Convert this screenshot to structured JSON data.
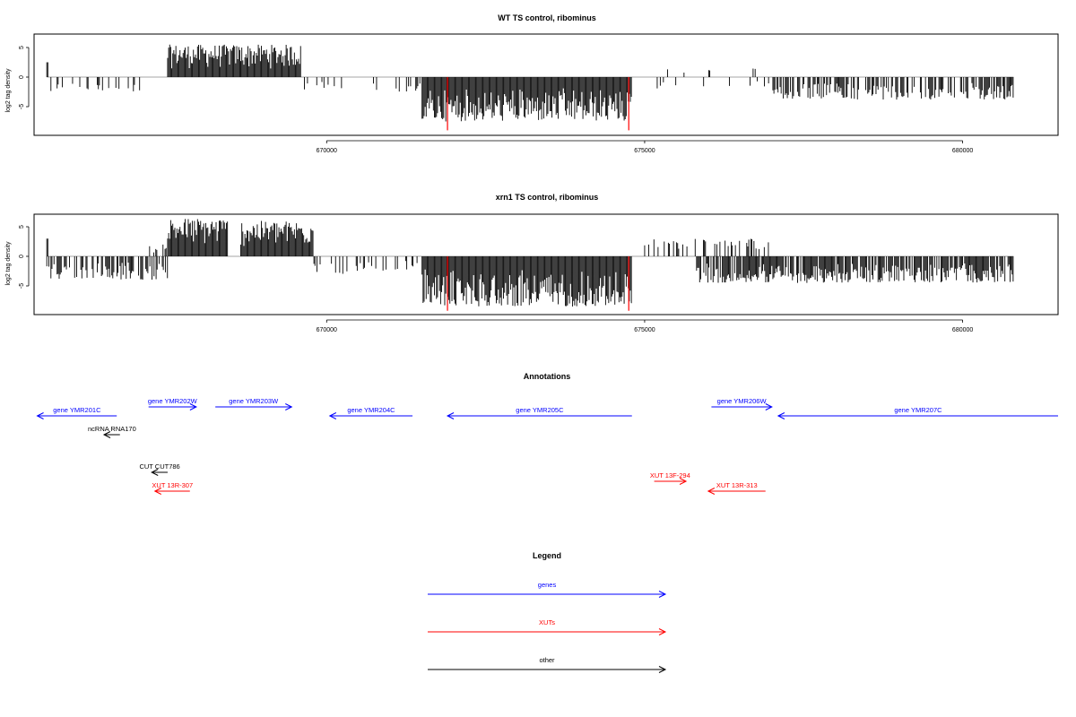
{
  "chart_data": [
    {
      "type": "bar",
      "title": "WT TS control, ribominus",
      "xlabel": "",
      "ylabel": "log2 tag density",
      "ylim": [
        -9.5,
        7
      ],
      "yticks": [
        -5,
        0,
        5
      ],
      "xlim": [
        665400,
        681500
      ],
      "xticks": [
        670000,
        675000,
        680000
      ],
      "x_tick_labels": [
        "670000",
        "675000",
        "680000"
      ],
      "grid": false,
      "highlight_color": "#ff0000",
      "segments": [
        {
          "strand": "plus",
          "start": 665600,
          "end": 665620,
          "max": 2.5,
          "density": 1
        },
        {
          "strand": "minus",
          "start": 665600,
          "end": 667100,
          "max": -2.5,
          "density": 0.25
        },
        {
          "strand": "plus",
          "start": 667500,
          "end": 668650,
          "max": 5.5,
          "density": 1
        },
        {
          "strand": "plus",
          "start": 668650,
          "end": 669600,
          "max": 5.5,
          "density": 1
        },
        {
          "strand": "minus",
          "start": 669650,
          "end": 671500,
          "max": -2.5,
          "density": 0.12
        },
        {
          "strand": "minus",
          "start": 671500,
          "end": 674800,
          "max": -7.5,
          "density": 1
        },
        {
          "strand": "plus",
          "start": 675100,
          "end": 677000,
          "max": 1.5,
          "density": 0.05
        },
        {
          "strand": "minus",
          "start": 675100,
          "end": 677000,
          "max": -2.0,
          "density": 0.08
        },
        {
          "strand": "minus",
          "start": 677000,
          "end": 680800,
          "max": -3.8,
          "density": 0.6
        }
      ],
      "highlights": [
        {
          "x": 671900,
          "value": -9.0
        },
        {
          "x": 674750,
          "value": -9.0
        }
      ]
    },
    {
      "type": "bar",
      "title": "xrn1 TS control, ribominus",
      "xlabel": "",
      "ylabel": "log2 tag density",
      "ylim": [
        -9.5,
        7
      ],
      "yticks": [
        -5,
        0,
        5
      ],
      "xlim": [
        665400,
        681500
      ],
      "xticks": [
        670000,
        675000,
        680000
      ],
      "x_tick_labels": [
        "670000",
        "675000",
        "680000"
      ],
      "grid": false,
      "highlight_color": "#ff0000",
      "segments": [
        {
          "strand": "plus",
          "start": 665600,
          "end": 665620,
          "max": 3.0,
          "density": 1
        },
        {
          "strand": "minus",
          "start": 665600,
          "end": 667500,
          "max": -4.0,
          "density": 0.6
        },
        {
          "strand": "plus",
          "start": 667200,
          "end": 667500,
          "max": 2.0,
          "density": 0.5
        },
        {
          "strand": "plus",
          "start": 667500,
          "end": 668450,
          "max": 6.5,
          "density": 1
        },
        {
          "strand": "plus",
          "start": 668650,
          "end": 669800,
          "max": 6.0,
          "density": 1
        },
        {
          "strand": "minus",
          "start": 669800,
          "end": 671500,
          "max": -3.0,
          "density": 0.3
        },
        {
          "strand": "minus",
          "start": 671500,
          "end": 674800,
          "max": -8.5,
          "density": 1
        },
        {
          "strand": "plus",
          "start": 675000,
          "end": 677000,
          "max": 3.0,
          "density": 0.3
        },
        {
          "strand": "minus",
          "start": 675800,
          "end": 680800,
          "max": -4.5,
          "density": 0.8
        }
      ],
      "highlights": [
        {
          "x": 671900,
          "value": -9.2
        },
        {
          "x": 674750,
          "value": -9.2
        }
      ]
    }
  ],
  "annotations": {
    "title": "Annotations",
    "features": [
      {
        "label": "gene YMR201C",
        "kind": "genes",
        "direction": "left",
        "start": 665450,
        "end": 666700,
        "row": 1
      },
      {
        "label": "gene YMR202W",
        "kind": "genes",
        "direction": "right",
        "start": 667200,
        "end": 667950,
        "row": 0
      },
      {
        "label": "gene YMR203W",
        "kind": "genes",
        "direction": "right",
        "start": 668250,
        "end": 669450,
        "row": 0
      },
      {
        "label": "gene YMR204C",
        "kind": "genes",
        "direction": "left",
        "start": 670050,
        "end": 671350,
        "row": 1
      },
      {
        "label": "gene YMR205C",
        "kind": "genes",
        "direction": "left",
        "start": 671900,
        "end": 674800,
        "row": 1
      },
      {
        "label": "gene YMR206W",
        "kind": "genes",
        "direction": "right",
        "start": 676050,
        "end": 677000,
        "row": 0
      },
      {
        "label": "gene YMR207C",
        "kind": "genes",
        "direction": "left",
        "start": 677100,
        "end": 681500,
        "row": 1
      },
      {
        "label": "ncRNA RNA170",
        "kind": "other",
        "direction": "left",
        "start": 666500,
        "end": 666750,
        "row": 2
      },
      {
        "label": "CUT CUT786",
        "kind": "other",
        "direction": "left",
        "start": 667250,
        "end": 667500,
        "row": 3
      },
      {
        "label": "XUT 13R-307",
        "kind": "XUTs",
        "direction": "left",
        "start": 667300,
        "end": 667850,
        "row": 4
      },
      {
        "label": "XUT 13F-294",
        "kind": "XUTs",
        "direction": "right",
        "start": 675150,
        "end": 675650,
        "row": 3.5
      },
      {
        "label": "XUT 13R-313",
        "kind": "XUTs",
        "direction": "left",
        "start": 676000,
        "end": 676900,
        "row": 4
      }
    ]
  },
  "legend": {
    "title": "Legend",
    "items": [
      {
        "label": "genes",
        "color": "#0000ff"
      },
      {
        "label": "XUTs",
        "color": "#ff0000"
      },
      {
        "label": "other",
        "color": "#000000"
      }
    ]
  },
  "colors": {
    "genes": "#0000ff",
    "XUTs": "#ff0000",
    "other": "#000000",
    "bars": "#000000"
  }
}
